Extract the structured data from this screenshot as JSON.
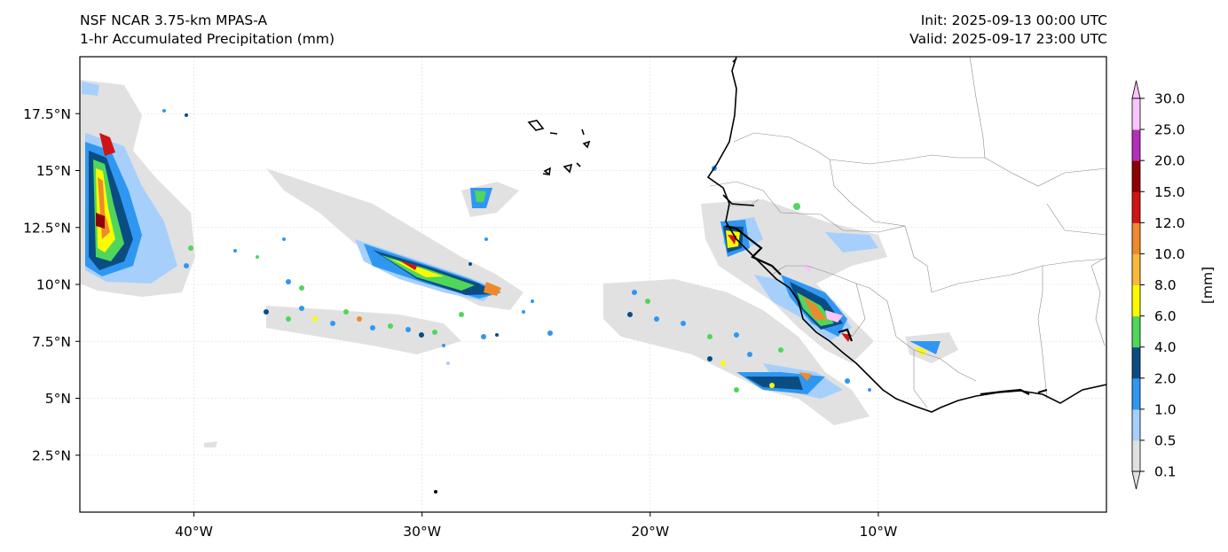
{
  "header": {
    "model": "NSF NCAR 3.75-km MPAS-A",
    "field": "1-hr Accumulated Precipitation (mm)",
    "init": "Init: 2025-09-13 00:00 UTC",
    "valid": "Valid: 2025-09-17 23:00 UTC"
  },
  "map": {
    "lon_range": [
      -45,
      0
    ],
    "lat_range": [
      0,
      20
    ],
    "lon_ticks": [
      {
        "value": -40,
        "label": "40°W"
      },
      {
        "value": -30,
        "label": "30°W"
      },
      {
        "value": -20,
        "label": "20°W"
      },
      {
        "value": -10,
        "label": "10°W"
      }
    ],
    "lat_ticks": [
      {
        "value": 2.5,
        "label": "2.5°N"
      },
      {
        "value": 5,
        "label": "5°N"
      },
      {
        "value": 7.5,
        "label": "7.5°N"
      },
      {
        "value": 10,
        "label": "10°N"
      },
      {
        "value": 12.5,
        "label": "12.5°N"
      },
      {
        "value": 15,
        "label": "15°N"
      },
      {
        "value": 17.5,
        "label": "17.5°N"
      }
    ],
    "gridlines": true
  },
  "colorbar": {
    "label": "[mm]",
    "extend": "both",
    "levels": [
      "0.1",
      "0.5",
      "1.0",
      "2.0",
      "4.0",
      "6.0",
      "8.0",
      "10.0",
      "12.0",
      "15.0",
      "20.0",
      "25.0",
      "30.0"
    ],
    "colors": [
      "#e1e1e1",
      "#a6d0fb",
      "#2f97f2",
      "#0b4d82",
      "#4fd65b",
      "#fbfb00",
      "#f8b93a",
      "#ee8a2c",
      "#d01414",
      "#8e0202",
      "#b32fb9",
      "#fbc4fb"
    ]
  }
}
